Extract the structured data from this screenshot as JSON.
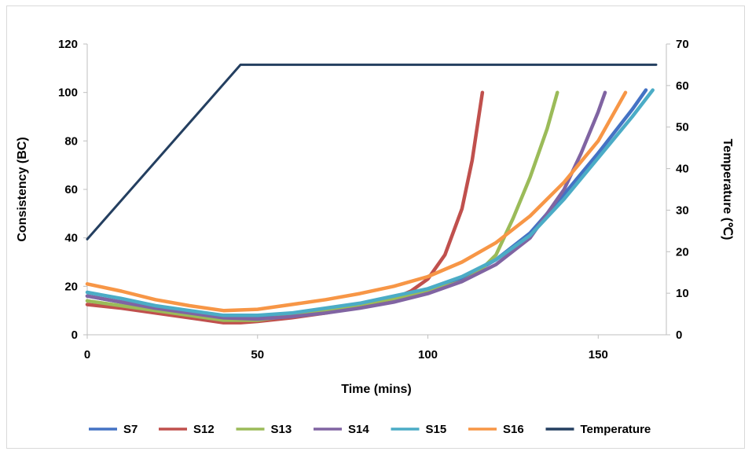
{
  "chart_data": {
    "type": "line",
    "title": "",
    "xlabel": "Time (mins)",
    "ylabel": "Consistency (BC)",
    "y2label": "Temperature (℃)",
    "xlim": [
      0,
      170
    ],
    "ylim": [
      0,
      120
    ],
    "y2lim": [
      0,
      70
    ],
    "x_ticks": [
      0,
      50,
      100,
      150
    ],
    "y_ticks": [
      0,
      20,
      40,
      60,
      80,
      100,
      120
    ],
    "y2_ticks": [
      0,
      10,
      20,
      30,
      40,
      50,
      60,
      70
    ],
    "grid": false,
    "legend_position": "bottom",
    "series": [
      {
        "name": "S7",
        "color": "#4472C4",
        "axis": "left",
        "points": [
          [
            0,
            16
          ],
          [
            10,
            13.5
          ],
          [
            20,
            11
          ],
          [
            30,
            9
          ],
          [
            40,
            7.5
          ],
          [
            50,
            7.5
          ],
          [
            60,
            8.5
          ],
          [
            70,
            10
          ],
          [
            80,
            12
          ],
          [
            90,
            14.5
          ],
          [
            100,
            18
          ],
          [
            110,
            23
          ],
          [
            120,
            31
          ],
          [
            130,
            42
          ],
          [
            140,
            58
          ],
          [
            150,
            75
          ],
          [
            160,
            93
          ],
          [
            164,
            101
          ]
        ]
      },
      {
        "name": "S12",
        "color": "#C0504D",
        "axis": "left",
        "points": [
          [
            0,
            12.5
          ],
          [
            10,
            11
          ],
          [
            20,
            9
          ],
          [
            30,
            7
          ],
          [
            40,
            5
          ],
          [
            45,
            5
          ],
          [
            50,
            5.5
          ],
          [
            60,
            7
          ],
          [
            70,
            9
          ],
          [
            80,
            11.5
          ],
          [
            90,
            15
          ],
          [
            95,
            18
          ],
          [
            100,
            23
          ],
          [
            105,
            33
          ],
          [
            110,
            52
          ],
          [
            113,
            72
          ],
          [
            116,
            100
          ]
        ]
      },
      {
        "name": "S13",
        "color": "#9BBB59",
        "axis": "left",
        "points": [
          [
            0,
            14
          ],
          [
            10,
            12
          ],
          [
            20,
            10
          ],
          [
            30,
            8
          ],
          [
            40,
            6
          ],
          [
            50,
            6
          ],
          [
            60,
            8
          ],
          [
            70,
            10
          ],
          [
            80,
            12.5
          ],
          [
            90,
            15
          ],
          [
            100,
            18
          ],
          [
            110,
            22
          ],
          [
            115,
            26
          ],
          [
            120,
            33
          ],
          [
            125,
            48
          ],
          [
            130,
            65
          ],
          [
            135,
            85
          ],
          [
            138,
            100
          ]
        ]
      },
      {
        "name": "S14",
        "color": "#8064A2",
        "axis": "left",
        "points": [
          [
            0,
            16
          ],
          [
            10,
            13.5
          ],
          [
            20,
            11
          ],
          [
            30,
            9
          ],
          [
            40,
            7
          ],
          [
            50,
            6.5
          ],
          [
            60,
            7.5
          ],
          [
            70,
            9
          ],
          [
            80,
            11
          ],
          [
            90,
            13.5
          ],
          [
            100,
            17
          ],
          [
            110,
            22
          ],
          [
            120,
            29
          ],
          [
            130,
            40
          ],
          [
            140,
            60
          ],
          [
            145,
            75
          ],
          [
            150,
            92
          ],
          [
            152,
            100
          ]
        ]
      },
      {
        "name": "S15",
        "color": "#4BACC6",
        "axis": "left",
        "points": [
          [
            0,
            17.5
          ],
          [
            10,
            15
          ],
          [
            20,
            12
          ],
          [
            30,
            10
          ],
          [
            40,
            8
          ],
          [
            50,
            8
          ],
          [
            60,
            9
          ],
          [
            70,
            11
          ],
          [
            80,
            13
          ],
          [
            90,
            16
          ],
          [
            100,
            19
          ],
          [
            110,
            24
          ],
          [
            120,
            31
          ],
          [
            130,
            41
          ],
          [
            140,
            56
          ],
          [
            150,
            73
          ],
          [
            160,
            90
          ],
          [
            166,
            101
          ]
        ]
      },
      {
        "name": "S16",
        "color": "#F79646",
        "axis": "left",
        "points": [
          [
            0,
            21
          ],
          [
            10,
            18
          ],
          [
            20,
            14.5
          ],
          [
            30,
            12
          ],
          [
            40,
            10
          ],
          [
            50,
            10.5
          ],
          [
            60,
            12.5
          ],
          [
            70,
            14.5
          ],
          [
            80,
            17
          ],
          [
            90,
            20
          ],
          [
            100,
            24
          ],
          [
            110,
            30
          ],
          [
            120,
            38
          ],
          [
            130,
            49
          ],
          [
            140,
            63
          ],
          [
            150,
            80
          ],
          [
            158,
            100
          ]
        ]
      },
      {
        "name": "Temperature",
        "color": "#243F60",
        "axis": "right",
        "points": [
          [
            0,
            23
          ],
          [
            45,
            65
          ],
          [
            167,
            65
          ]
        ]
      }
    ]
  }
}
